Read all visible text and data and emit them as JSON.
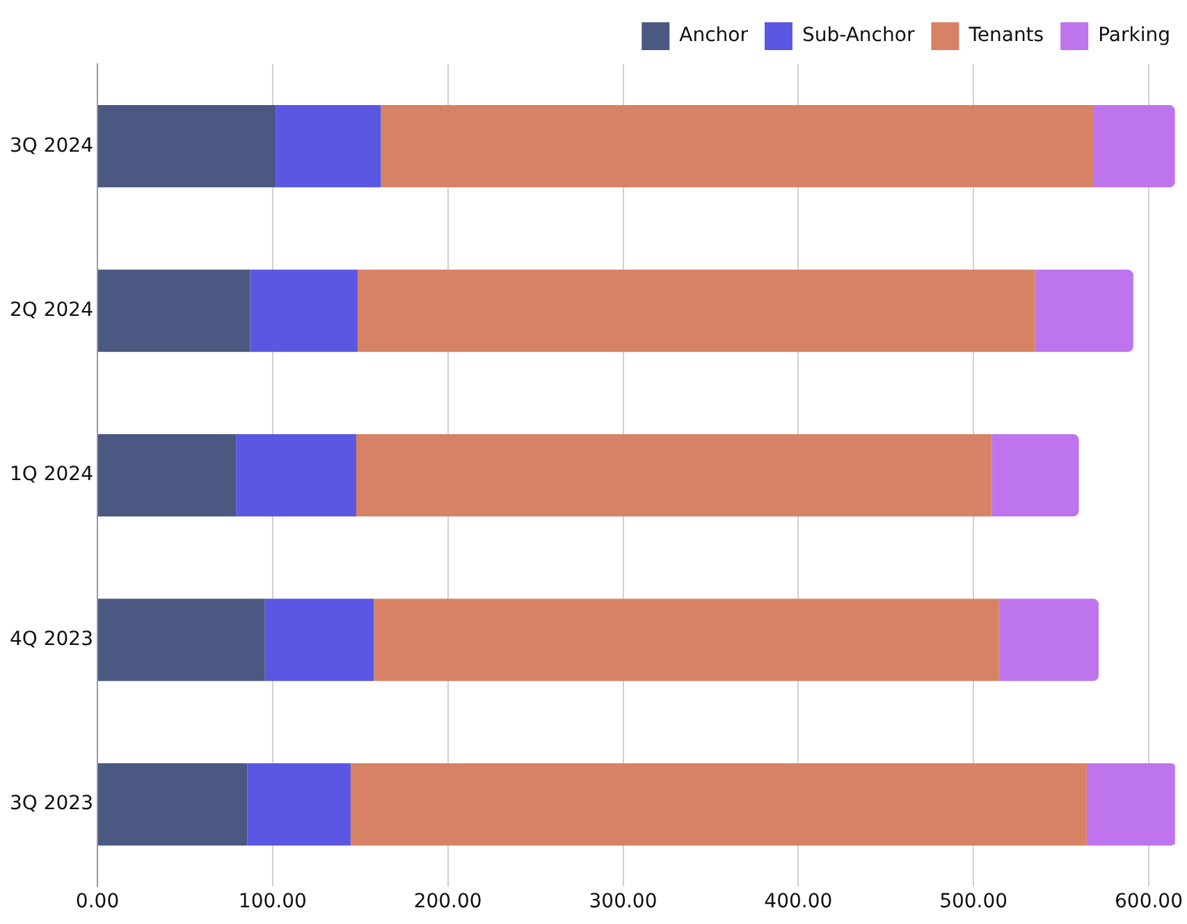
{
  "chart_data": {
    "type": "bar",
    "orientation": "horizontal",
    "stacked": true,
    "categories": [
      "3Q 2024",
      "2Q 2024",
      "1Q 2024",
      "4Q 2023",
      "3Q 2023"
    ],
    "series": [
      {
        "name": "Anchor",
        "color": "#4a5882",
        "values": [
          101.7,
          87.2,
          79.1,
          95.6,
          85.6
        ]
      },
      {
        "name": "Sub-Anchor",
        "color": "#5a57e3",
        "values": [
          60.1,
          61.3,
          68.6,
          62.2,
          58.9
        ]
      },
      {
        "name": "Tenants",
        "color": "#d78265",
        "values": [
          406.8,
          386.6,
          362.8,
          356.7,
          420.1
        ]
      },
      {
        "name": "Parking",
        "color": "#bd74ec",
        "values": [
          46.4,
          56.1,
          49.6,
          56.9,
          51.2
        ]
      }
    ],
    "xlim": [
      0,
      615
    ],
    "xticks": [
      {
        "value": 0,
        "label": "0.00"
      },
      {
        "value": 100,
        "label": "100.00"
      },
      {
        "value": 200,
        "label": "200.00"
      },
      {
        "value": 300,
        "label": "300.00"
      },
      {
        "value": 400,
        "label": "400.00"
      },
      {
        "value": 500,
        "label": "500.00"
      },
      {
        "value": 600,
        "label": "600.00"
      }
    ],
    "grid": "x",
    "legend": "top"
  }
}
